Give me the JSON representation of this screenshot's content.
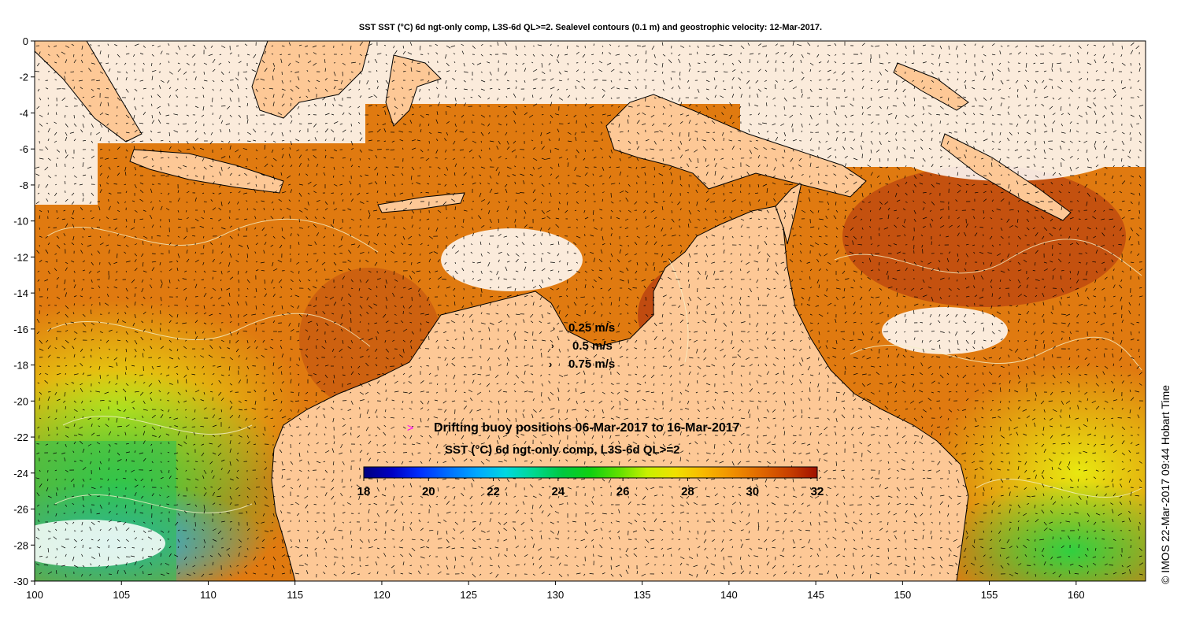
{
  "title": "SST SST (°C) 6d ngt-only comp, L3S-6d QL>=2. Sealevel contours (0.1 m) and geostrophic velocity: 12-Mar-2017.",
  "axes": {
    "x": {
      "min": 100,
      "max": 164,
      "ticks": [
        100,
        105,
        110,
        115,
        120,
        125,
        130,
        135,
        140,
        145,
        150,
        155,
        160
      ],
      "tick_labels": [
        "100",
        "105",
        "110",
        "115",
        "120",
        "125",
        "130",
        "135",
        "140",
        "145",
        "150",
        "155",
        "160"
      ]
    },
    "y": {
      "min": -30,
      "max": 0,
      "ticks": [
        0,
        -2,
        -4,
        -6,
        -8,
        -10,
        -12,
        -14,
        -16,
        -18,
        -20,
        -22,
        -24,
        -26,
        -28,
        -30
      ],
      "tick_labels": [
        "0",
        "-2",
        "-4",
        "-6",
        "-8",
        "-10",
        "-12",
        "-14",
        "-16",
        "-18",
        "-20",
        "-22",
        "-24",
        "-26",
        "-28",
        "-30"
      ]
    }
  },
  "velocity_legend": [
    "0.25 m/s",
    "0.5 m/s",
    "0.75 m/s"
  ],
  "buoy_legend": {
    "symbol": ">",
    "text": "Drifting buoy positions 06-Mar-2017 to 16-Mar-2017",
    "color": "#ff00ff"
  },
  "colorbar": {
    "title": "SST (°C) 6d ngt-only comp, L3S-6d QL>=2",
    "min": 18,
    "max": 32,
    "tick_values": [
      18,
      20,
      22,
      24,
      26,
      28,
      30,
      32
    ],
    "tick_labels": [
      "18",
      "20",
      "22",
      "24",
      "26",
      "28",
      "30",
      "32"
    ],
    "colors": [
      "#00007f",
      "#0000c4",
      "#0030ff",
      "#0070ff",
      "#00a8ff",
      "#00d8e0",
      "#00d890",
      "#00c840",
      "#10d010",
      "#60e000",
      "#c8f000",
      "#f0e000",
      "#f8b800",
      "#f09000",
      "#e06800",
      "#c84000",
      "#a01000"
    ]
  },
  "credit": "© IMOS 22-Mar-2017 09:44 Hobart Time",
  "colors": {
    "land": "#fdc896",
    "missing": "#ffffff"
  }
}
